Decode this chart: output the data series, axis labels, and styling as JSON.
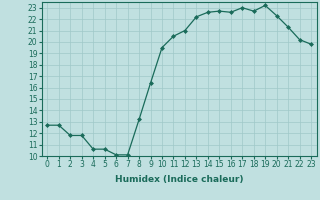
{
  "x": [
    0,
    1,
    2,
    3,
    4,
    5,
    6,
    7,
    8,
    9,
    10,
    11,
    12,
    13,
    14,
    15,
    16,
    17,
    18,
    19,
    20,
    21,
    22,
    23
  ],
  "y": [
    12.7,
    12.7,
    11.8,
    11.8,
    10.6,
    10.6,
    10.1,
    10.1,
    13.2,
    16.4,
    19.5,
    20.5,
    21.0,
    22.2,
    22.6,
    22.7,
    22.6,
    23.0,
    22.7,
    23.2,
    22.3,
    21.3,
    20.2,
    19.8
  ],
  "line_color": "#1a6b5a",
  "marker_color": "#1a6b5a",
  "bg_color": "#c0e0e0",
  "grid_color": "#a0c8c8",
  "xlabel": "Humidex (Indice chaleur)",
  "ylim": [
    10,
    23.5
  ],
  "xlim": [
    -0.5,
    23.5
  ],
  "yticks": [
    10,
    11,
    12,
    13,
    14,
    15,
    16,
    17,
    18,
    19,
    20,
    21,
    22,
    23
  ],
  "xticks": [
    0,
    1,
    2,
    3,
    4,
    5,
    6,
    7,
    8,
    9,
    10,
    11,
    12,
    13,
    14,
    15,
    16,
    17,
    18,
    19,
    20,
    21,
    22,
    23
  ],
  "tick_fontsize": 5.5,
  "xlabel_fontsize": 6.5
}
